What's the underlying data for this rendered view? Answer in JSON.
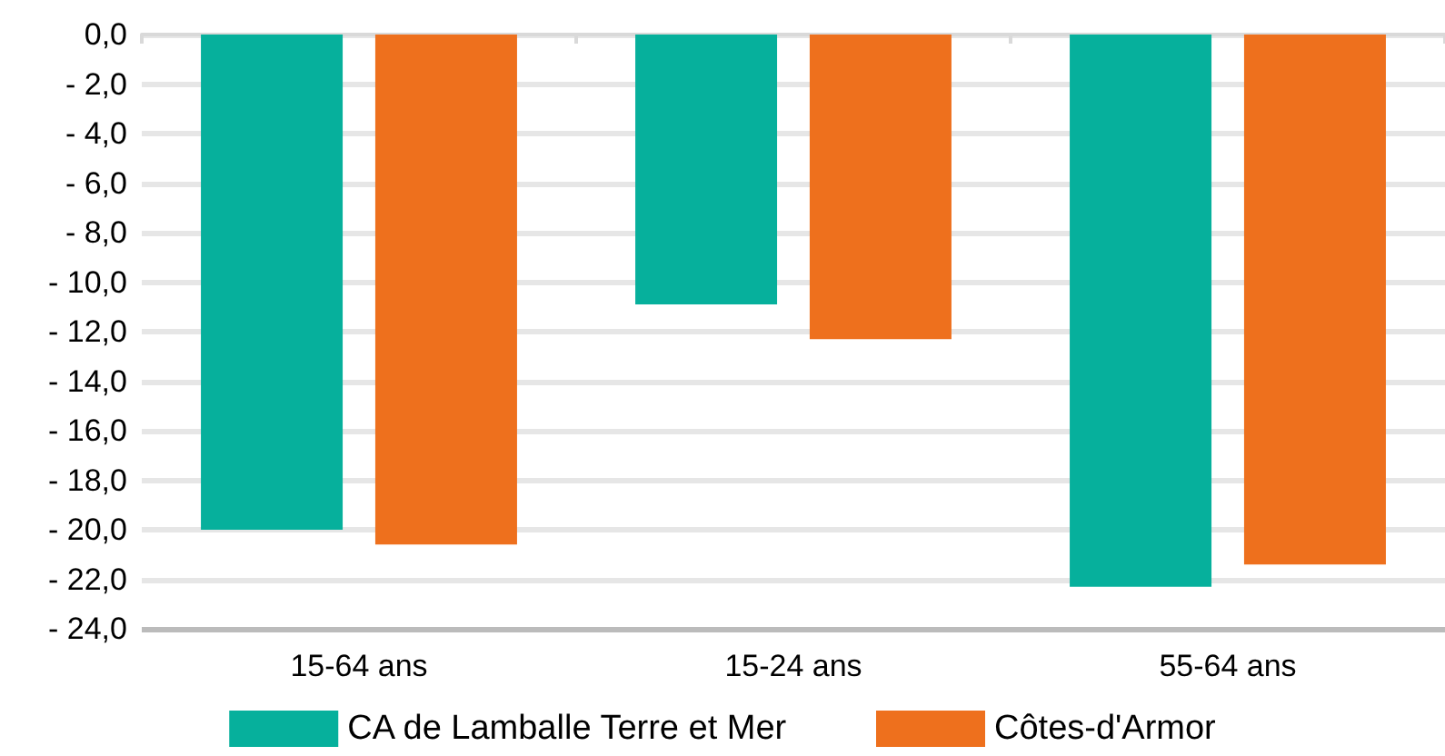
{
  "chart_data": {
    "type": "bar",
    "categories": [
      "15-64 ans",
      "15-24 ans",
      "55-64 ans"
    ],
    "series": [
      {
        "name": "CA de Lamballe Terre et Mer",
        "color": "#06b09c",
        "values": [
          -20.0,
          -10.9,
          -22.3
        ]
      },
      {
        "name": "Côtes-d'Armor",
        "color": "#ee701d",
        "values": [
          -20.6,
          -12.3,
          -21.4
        ]
      }
    ],
    "ylim": [
      -24,
      0
    ],
    "yticks": [
      {
        "value": 0,
        "label": "0,0"
      },
      {
        "value": -2,
        "label": "- 2,0"
      },
      {
        "value": -4,
        "label": "- 4,0"
      },
      {
        "value": -6,
        "label": "- 6,0"
      },
      {
        "value": -8,
        "label": "- 8,0"
      },
      {
        "value": -10,
        "label": "- 10,0"
      },
      {
        "value": -12,
        "label": "- 12,0"
      },
      {
        "value": -14,
        "label": "- 14,0"
      },
      {
        "value": -16,
        "label": "- 16,0"
      },
      {
        "value": -18,
        "label": "- 18,0"
      },
      {
        "value": -20,
        "label": "- 20,0"
      },
      {
        "value": -22,
        "label": "- 22,0"
      },
      {
        "value": -24,
        "label": "- 24,0"
      }
    ],
    "grid": "y",
    "legend": "bottom"
  }
}
